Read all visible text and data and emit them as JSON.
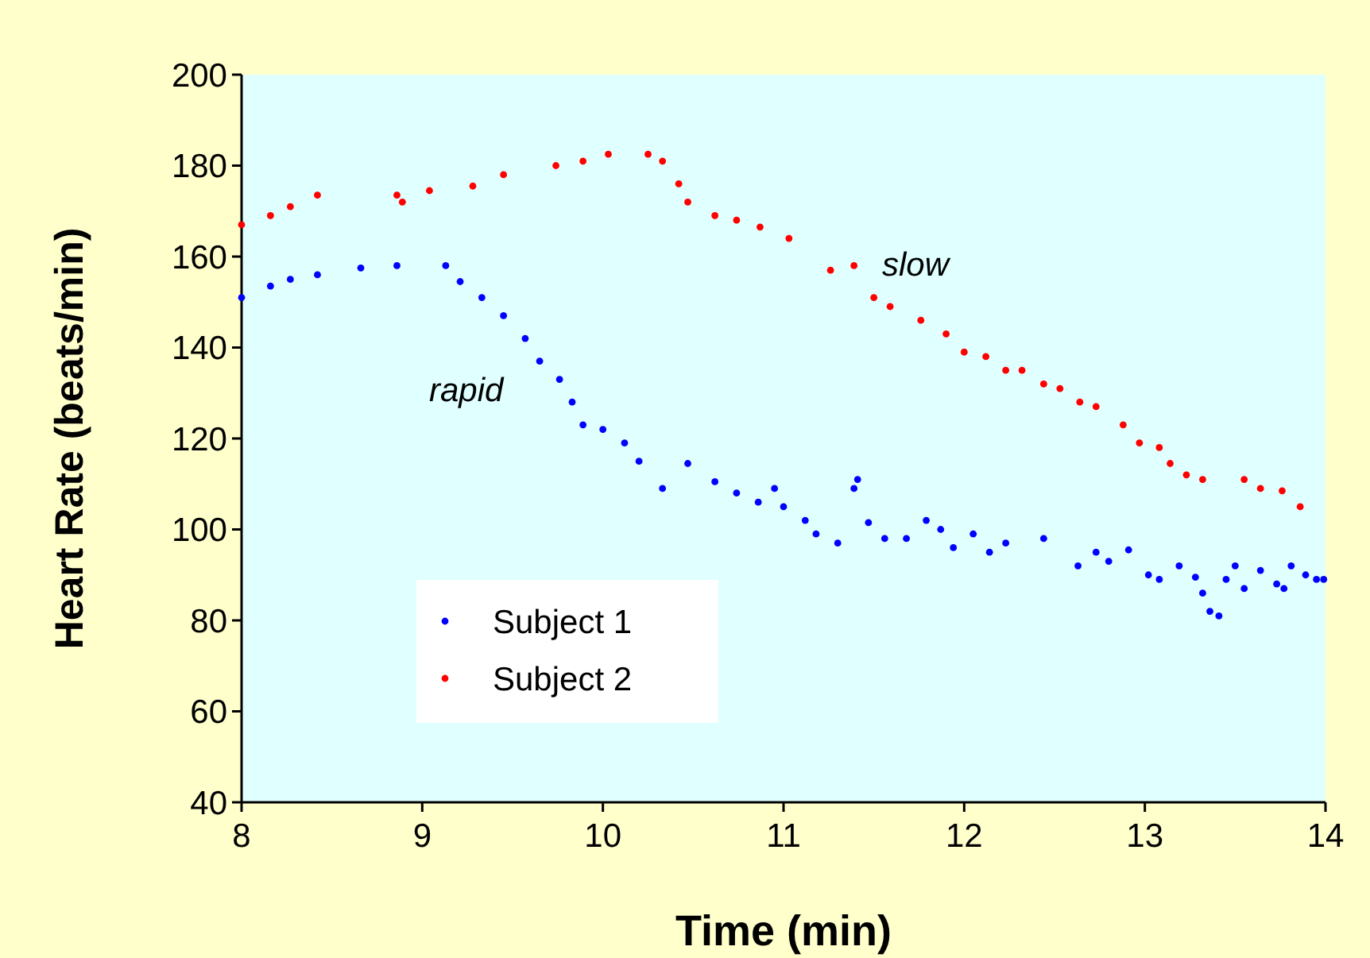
{
  "chart_data": {
    "type": "scatter",
    "xlabel": "Time (min)",
    "ylabel": "Heart Rate (beats/min)",
    "xlim": [
      8,
      14
    ],
    "ylim": [
      40,
      200
    ],
    "xticks": [
      8,
      9,
      10,
      11,
      12,
      13,
      14
    ],
    "yticks": [
      40,
      60,
      80,
      100,
      120,
      140,
      160,
      180,
      200
    ],
    "grid": false,
    "legend": "bottom left",
    "marker": "circle",
    "annotations": [
      "rapid",
      "slow"
    ],
    "series": [
      {
        "name": "Subject 1",
        "color": "#0000ff",
        "x": [
          8.0,
          8.16,
          8.27,
          8.42,
          8.66,
          8.86,
          9.13,
          9.21,
          9.33,
          9.45,
          9.57,
          9.65,
          9.76,
          9.83,
          9.89,
          10.0,
          10.12,
          10.2,
          10.33,
          10.47,
          10.62,
          10.74,
          10.86,
          10.95,
          11.0,
          11.12,
          11.18,
          11.3,
          11.39,
          11.41,
          11.47,
          11.56,
          11.68,
          11.79,
          11.87,
          11.94,
          12.05,
          12.14,
          12.23,
          12.44,
          12.63,
          12.73,
          12.8,
          12.91,
          13.02,
          13.08,
          13.19,
          13.28,
          13.32,
          13.36,
          13.41,
          13.45,
          13.5,
          13.55,
          13.64,
          13.73,
          13.77,
          13.81,
          13.89,
          13.95,
          13.99
        ],
        "values": [
          151,
          153.5,
          155,
          156,
          157.5,
          158,
          158,
          154.5,
          151,
          147,
          142,
          137,
          133,
          128,
          123,
          122,
          119,
          115,
          109,
          114.5,
          110.5,
          108,
          106,
          109,
          105,
          102,
          99,
          97,
          109,
          111,
          101.5,
          98,
          98,
          102,
          100,
          96,
          99,
          95,
          97,
          98,
          92,
          95,
          93,
          95.5,
          90,
          89,
          92,
          89.5,
          86,
          82,
          81,
          89,
          92,
          87,
          91,
          88,
          87,
          92,
          90,
          89,
          89
        ]
      },
      {
        "name": "Subject 2",
        "color": "#ff0000",
        "x": [
          8.0,
          8.16,
          8.27,
          8.42,
          8.86,
          8.89,
          9.04,
          9.28,
          9.45,
          9.74,
          9.89,
          10.03,
          10.25,
          10.33,
          10.42,
          10.47,
          10.62,
          10.74,
          10.87,
          11.03,
          11.26,
          11.39,
          11.5,
          11.59,
          11.76,
          11.9,
          12.0,
          12.12,
          12.23,
          12.32,
          12.44,
          12.53,
          12.64,
          12.73,
          12.88,
          12.97,
          13.08,
          13.14,
          13.23,
          13.32,
          13.55,
          13.64,
          13.76,
          13.86
        ],
        "values": [
          167,
          169,
          171,
          173.5,
          173.5,
          172,
          174.5,
          175.5,
          178,
          180,
          181,
          182.5,
          182.5,
          181,
          176,
          172,
          169,
          168,
          166.5,
          164,
          157,
          158,
          151,
          149,
          146,
          143,
          139,
          138,
          135,
          135,
          132,
          131,
          128,
          127,
          123,
          119,
          118,
          114.5,
          112,
          111,
          111,
          109,
          108.5,
          105
        ]
      }
    ]
  }
}
